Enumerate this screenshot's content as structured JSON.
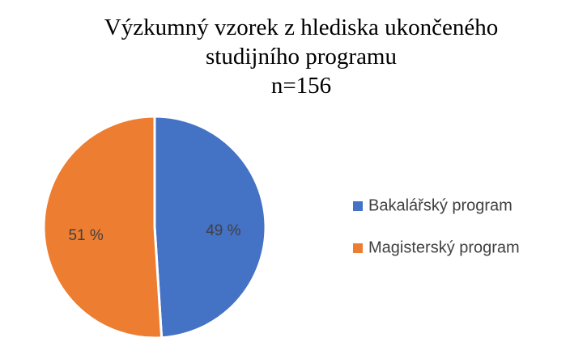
{
  "chart_data": {
    "type": "pie",
    "title": "Výzkumný vzorek z hlediska ukončeného studijního programu",
    "subtitle": "n=156",
    "categories": [
      "Bakalářský program",
      "Magisterský program"
    ],
    "values": [
      49,
      51
    ],
    "value_labels": [
      "49 %",
      "51 %"
    ],
    "colors": [
      "#4472c4",
      "#ed7d31"
    ],
    "legend": "right"
  }
}
